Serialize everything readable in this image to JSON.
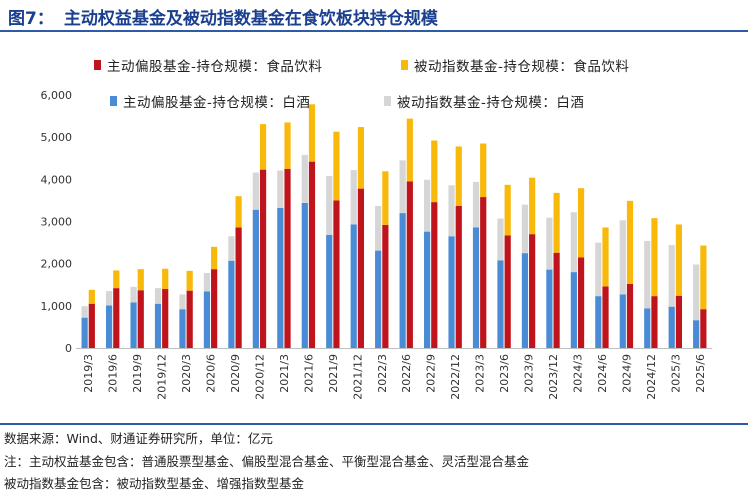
{
  "figure": {
    "number": "图7：",
    "title": "主动权益基金及被动指数基金在食饮板块持仓规模"
  },
  "legend": [
    {
      "label": "主动偏股基金-持仓规模：食品饮料",
      "color": "#c0141c"
    },
    {
      "label": "被动指数基金-持仓规模：食品饮料",
      "color": "#f9b90b"
    },
    {
      "label": "主动偏股基金-持仓规模：白酒",
      "color": "#4a8bd6"
    },
    {
      "label": "被动指数基金-持仓规模：白酒",
      "color": "#d6d6d6"
    }
  ],
  "notes": {
    "source": "数据来源：Wind、财通证券研究所，单位：亿元",
    "note1": "注：主动权益基金包含：普通股票型基金、偏股型混合基金、平衡型混合基金、灵活型混合基金",
    "note2": "被动指数基金包含：被动指数型基金、增强指数型基金"
  },
  "chart_data": {
    "type": "bar",
    "title": "主动权益基金及被动指数基金在食饮板块持仓规模",
    "xlabel": "",
    "ylabel": "",
    "unit": "亿元",
    "ylim": [
      0,
      6000
    ],
    "yticks": [
      "0",
      "1,000",
      "2,000",
      "3,000",
      "4,000",
      "5,000",
      "6,000"
    ],
    "grid": false,
    "legend_position": "top",
    "categories": [
      "2019/3",
      "2019/6",
      "2019/9",
      "2019/12",
      "2020/3",
      "2020/6",
      "2020/9",
      "2020/12",
      "2021/3",
      "2021/6",
      "2021/9",
      "2021/12",
      "2022/3",
      "2022/6",
      "2022/9",
      "2022/12",
      "2023/3",
      "2023/6",
      "2023/9",
      "2023/12",
      "2024/3",
      "2024/6",
      "2024/9",
      "2024/12",
      "2025/3",
      "2025/6"
    ],
    "groups": [
      {
        "name": "白酒",
        "stacked_series": [
          {
            "name": "主动偏股基金-持仓规模：白酒",
            "values": [
              720,
              1010,
              1080,
              1050,
              920,
              1340,
              2070,
              3280,
              3320,
              3440,
              2680,
              2930,
              2310,
              3200,
              2760,
              2650,
              2860,
              2080,
              2250,
              1860,
              1800,
              1230,
              1270,
              940,
              980,
              660
            ]
          },
          {
            "name": "被动指数基金-持仓规模：白酒",
            "values": [
              270,
              340,
              370,
              370,
              350,
              440,
              580,
              880,
              890,
              1140,
              1400,
              1290,
              1060,
              1250,
              1230,
              1210,
              1080,
              990,
              1150,
              1230,
              1420,
              1270,
              1760,
              1600,
              1460,
              1320
            ]
          }
        ]
      },
      {
        "name": "食品饮料",
        "stacked_series": [
          {
            "name": "主动偏股基金-持仓规模：食品饮料",
            "values": [
              1050,
              1420,
              1370,
              1400,
              1360,
              1870,
              2860,
              4230,
              4250,
              4420,
              3500,
              3780,
              2920,
              3950,
              3460,
              3370,
              3580,
              2670,
              2700,
              2260,
              2150,
              1460,
              1520,
              1230,
              1240,
              920
            ]
          },
          {
            "name": "被动指数基金-持仓规模：食品饮料",
            "values": [
              330,
              420,
              500,
              480,
              470,
              530,
              740,
              1080,
              1100,
              1360,
              1630,
              1460,
              1270,
              1490,
              1460,
              1410,
              1270,
              1200,
              1340,
              1420,
              1640,
              1400,
              1970,
              1850,
              1690,
              1510
            ]
          }
        ]
      }
    ]
  }
}
